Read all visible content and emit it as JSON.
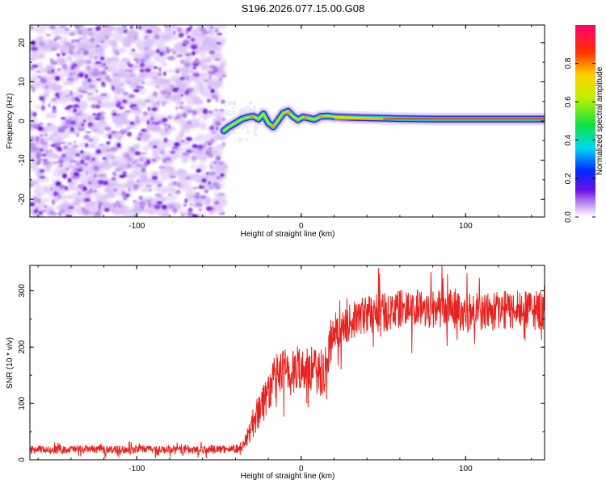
{
  "title": "S196.2026.077.15.00.G08",
  "chart_data": [
    {
      "type": "heatmap",
      "name": "spectrogram",
      "xlabel": "Height of straight line (km)",
      "ylabel": "Frequency (Hz)",
      "xlim": [
        -165,
        148
      ],
      "ylim": [
        -24.5,
        24.5
      ],
      "xticks": [
        -100,
        0,
        100
      ],
      "yticks": [
        -20,
        -10,
        0,
        10,
        20
      ],
      "noise_region_x": [
        -165,
        -47
      ],
      "signal_start_x": -47,
      "signal_track": {
        "x": [
          -47,
          -44,
          -40,
          -36,
          -32,
          -29,
          -26,
          -23,
          -20,
          -17,
          -14,
          -11,
          -8,
          -5,
          -2,
          1,
          4,
          8,
          12,
          16,
          20,
          30,
          40,
          60,
          80,
          100,
          120,
          148
        ],
        "freq": [
          -2.5,
          -1.5,
          -0.5,
          0.5,
          1.0,
          1.2,
          0.5,
          1.8,
          -0.5,
          -1.5,
          0.2,
          2.0,
          2.5,
          1.2,
          0.3,
          1.0,
          0.8,
          0.4,
          1.2,
          1.3,
          1.1,
          0.9,
          0.8,
          0.6,
          0.5,
          0.5,
          0.5,
          0.5
        ]
      },
      "colorbar": {
        "label": "Normalized spectral amplitude",
        "ticks": [
          0.0,
          0.2,
          0.4,
          0.6,
          0.8
        ],
        "range": [
          0,
          1
        ]
      }
    },
    {
      "type": "line",
      "name": "snr",
      "xlabel": "Height of straight line (km)",
      "ylabel": "SNR (10 * v/v)",
      "xlim": [
        -165,
        148
      ],
      "ylim": [
        0,
        345
      ],
      "xticks": [
        -100,
        0,
        100
      ],
      "yticks": [
        0,
        100,
        200,
        300
      ],
      "series": [
        {
          "name": "SNR",
          "color": "#e8221e",
          "x": [
            -165,
            -150,
            -130,
            -110,
            -90,
            -70,
            -50,
            -40,
            -35,
            -30,
            -25,
            -20,
            -15,
            -10,
            -5,
            0,
            5,
            10,
            15,
            18,
            22,
            30,
            40,
            50,
            60,
            70,
            80,
            90,
            100,
            110,
            120,
            130,
            140,
            148
          ],
          "y": [
            18,
            18,
            19,
            18,
            19,
            18,
            19,
            20,
            25,
            60,
            95,
            120,
            150,
            155,
            150,
            170,
            165,
            150,
            165,
            210,
            225,
            245,
            260,
            262,
            268,
            270,
            268,
            268,
            262,
            264,
            266,
            265,
            265,
            265
          ],
          "noise_amplitude": [
            7,
            7,
            7,
            7,
            7,
            7,
            7,
            7,
            10,
            25,
            35,
            40,
            40,
            45,
            45,
            40,
            45,
            40,
            45,
            35,
            30,
            32,
            35,
            35,
            35,
            35,
            35,
            35,
            35,
            35,
            35,
            35,
            35,
            35
          ]
        }
      ]
    }
  ]
}
